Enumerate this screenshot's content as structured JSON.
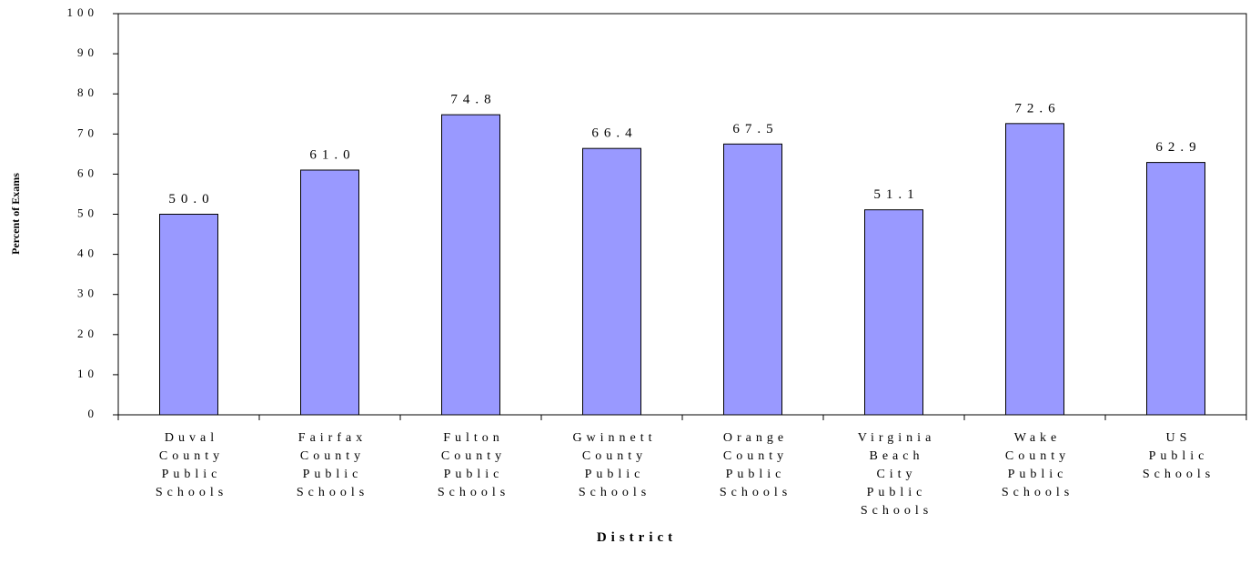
{
  "chart_data": {
    "type": "bar",
    "x_label": "District",
    "y_label": "Percent of Exams",
    "categories": [
      "Duval County Public Schools",
      "Fairfax County Public Schools",
      "Fulton County Public Schools",
      "Gwinnett County Public Schools",
      "Orange County Public Schools",
      "Virginia Beach City Public Schools",
      "Wake County Public Schools",
      "US Public Schools"
    ],
    "values": [
      50.0,
      61.0,
      74.8,
      66.4,
      67.5,
      51.1,
      72.6,
      62.9
    ],
    "value_labels": [
      "50.0",
      "61.0",
      "74.8",
      "66.4",
      "67.5",
      "51.1",
      "72.6",
      "62.9"
    ],
    "color": "#9999ff",
    "ylim": [
      0,
      100
    ],
    "yticks": [
      0,
      10,
      20,
      30,
      40,
      50,
      60,
      70,
      80,
      90,
      100
    ]
  }
}
